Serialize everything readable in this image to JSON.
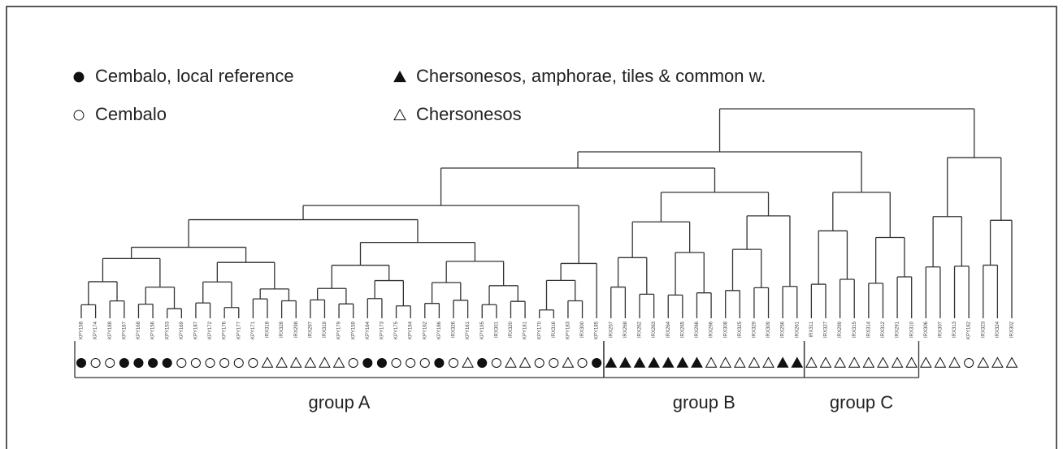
{
  "legend": [
    {
      "label": "Cembalo, local reference"
    },
    {
      "label": "Chersonesos, amphorae, tiles & common w."
    },
    {
      "label": "Cembalo"
    },
    {
      "label": "Chersonesos"
    }
  ],
  "groups": [
    {
      "label": "group A",
      "leaves": [
        {
          "id": "KPY158",
          "class": 0
        },
        {
          "id": "KPY174",
          "class": 2
        },
        {
          "id": "KPY188",
          "class": 2
        },
        {
          "id": "KPY167",
          "class": 0
        },
        {
          "id": "KPY168",
          "class": 0
        },
        {
          "id": "KPY156",
          "class": 0
        },
        {
          "id": "KPY153",
          "class": 0
        },
        {
          "id": "KPY169",
          "class": 2
        },
        {
          "id": "KPY187",
          "class": 2
        },
        {
          "id": "KPY172",
          "class": 2
        },
        {
          "id": "KPY176",
          "class": 2
        },
        {
          "id": "KPY177",
          "class": 2
        },
        {
          "id": "KPY171",
          "class": 2
        },
        {
          "id": "IRX318",
          "class": 3
        },
        {
          "id": "IRX328",
          "class": 3
        },
        {
          "id": "IRX298",
          "class": 3
        },
        {
          "id": "IRX297",
          "class": 3
        },
        {
          "id": "IRX319",
          "class": 3
        },
        {
          "id": "KPY179",
          "class": 3
        },
        {
          "id": "KPY159",
          "class": 2
        },
        {
          "id": "KPY164",
          "class": 0
        },
        {
          "id": "KPY173",
          "class": 0
        },
        {
          "id": "KPY175",
          "class": 2
        },
        {
          "id": "KPY194",
          "class": 2
        },
        {
          "id": "KPY162",
          "class": 2
        },
        {
          "id": "KPY186",
          "class": 0
        },
        {
          "id": "IRX326",
          "class": 2
        },
        {
          "id": "KPY161",
          "class": 3
        },
        {
          "id": "KPY195",
          "class": 0
        },
        {
          "id": "IRX301",
          "class": 2
        },
        {
          "id": "IRX320",
          "class": 3
        },
        {
          "id": "KPY181",
          "class": 3
        },
        {
          "id": "KPY170",
          "class": 2
        },
        {
          "id": "IRX316",
          "class": 2
        },
        {
          "id": "KPY183",
          "class": 3
        },
        {
          "id": "IRX300",
          "class": 2
        },
        {
          "id": "KPY185",
          "class": 0
        }
      ]
    },
    {
      "label": "group B",
      "leaves": [
        {
          "id": "IRX257",
          "class": 1
        },
        {
          "id": "IRX268",
          "class": 1
        },
        {
          "id": "IRX262",
          "class": 1
        },
        {
          "id": "IRX263",
          "class": 1
        },
        {
          "id": "IRX264",
          "class": 1
        },
        {
          "id": "IRX265",
          "class": 1
        },
        {
          "id": "IRX266",
          "class": 1
        },
        {
          "id": "IRX296",
          "class": 3
        },
        {
          "id": "IRX308",
          "class": 3
        },
        {
          "id": "IRX325",
          "class": 3
        },
        {
          "id": "IRX329",
          "class": 3
        },
        {
          "id": "IRX309",
          "class": 3
        },
        {
          "id": "IRX256",
          "class": 1
        },
        {
          "id": "IRX261",
          "class": 1
        }
      ]
    },
    {
      "label": "group C",
      "leaves": [
        {
          "id": "IRX311",
          "class": 3
        },
        {
          "id": "IRX327",
          "class": 3
        },
        {
          "id": "IRX299",
          "class": 3
        },
        {
          "id": "IRX315",
          "class": 3
        },
        {
          "id": "IRX314",
          "class": 3
        },
        {
          "id": "IRX312",
          "class": 3
        },
        {
          "id": "IRX291",
          "class": 3
        },
        {
          "id": "IRX310",
          "class": 3
        }
      ]
    }
  ],
  "other_leaves": [
    {
      "id": "IRX306",
      "class": 3
    },
    {
      "id": "IRX307",
      "class": 3
    },
    {
      "id": "IRX313",
      "class": 3
    },
    {
      "id": "KPY182",
      "class": 2
    },
    {
      "id": "IRX323",
      "class": 3
    },
    {
      "id": "IRX324",
      "class": 3
    },
    {
      "id": "IRX302",
      "class": 3
    }
  ]
}
